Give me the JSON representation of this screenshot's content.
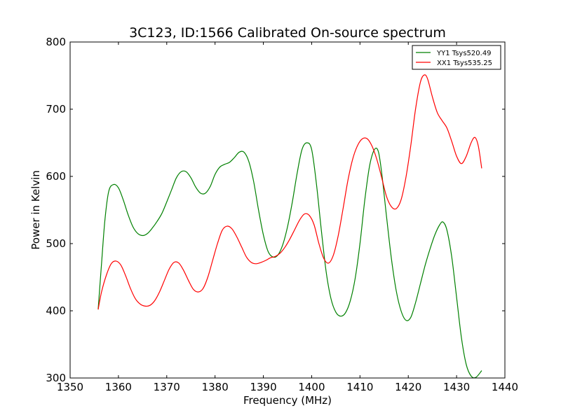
{
  "chart_data": {
    "type": "line",
    "title": "3C123, ID:1566 Calibrated On-source spectrum",
    "xlabel": "Frequency (MHz)",
    "ylabel": "Power in Kelvin",
    "xlim": [
      1350,
      1440
    ],
    "ylim": [
      300,
      800
    ],
    "xticks": [
      1350,
      1360,
      1370,
      1380,
      1390,
      1400,
      1410,
      1420,
      1430,
      1440
    ],
    "yticks": [
      300,
      400,
      500,
      600,
      700,
      800
    ],
    "grid": false,
    "legend_position": "top-right",
    "colors": {
      "YY1": "#008000",
      "XX1": "#ff0000"
    },
    "series": [
      {
        "name": "YY1 Tsys520.49",
        "color": "#008000",
        "points": [
          [
            1355.8,
            402
          ],
          [
            1356.5,
            470
          ],
          [
            1357.2,
            535
          ],
          [
            1358.0,
            578
          ],
          [
            1359.0,
            588
          ],
          [
            1360.0,
            583
          ],
          [
            1361.0,
            565
          ],
          [
            1362.0,
            543
          ],
          [
            1363.0,
            525
          ],
          [
            1364.0,
            515
          ],
          [
            1365.0,
            512
          ],
          [
            1366.0,
            515
          ],
          [
            1367.0,
            523
          ],
          [
            1368.0,
            533
          ],
          [
            1369.0,
            545
          ],
          [
            1370.0,
            562
          ],
          [
            1371.0,
            580
          ],
          [
            1372.0,
            598
          ],
          [
            1373.0,
            607
          ],
          [
            1374.0,
            607
          ],
          [
            1375.0,
            598
          ],
          [
            1376.0,
            584
          ],
          [
            1377.0,
            575
          ],
          [
            1378.0,
            575
          ],
          [
            1379.0,
            585
          ],
          [
            1380.0,
            603
          ],
          [
            1381.0,
            614
          ],
          [
            1382.0,
            618
          ],
          [
            1383.0,
            621
          ],
          [
            1384.0,
            628
          ],
          [
            1385.0,
            636
          ],
          [
            1386.0,
            636
          ],
          [
            1387.0,
            622
          ],
          [
            1388.0,
            592
          ],
          [
            1389.0,
            550
          ],
          [
            1390.0,
            513
          ],
          [
            1391.0,
            488
          ],
          [
            1392.0,
            480
          ],
          [
            1393.0,
            483
          ],
          [
            1394.0,
            498
          ],
          [
            1395.0,
            525
          ],
          [
            1396.0,
            562
          ],
          [
            1397.0,
            605
          ],
          [
            1398.0,
            640
          ],
          [
            1399.0,
            650
          ],
          [
            1400.0,
            640
          ],
          [
            1401.0,
            588
          ],
          [
            1402.0,
            520
          ],
          [
            1403.0,
            458
          ],
          [
            1404.0,
            418
          ],
          [
            1405.0,
            398
          ],
          [
            1406.0,
            392
          ],
          [
            1407.0,
            397
          ],
          [
            1408.0,
            415
          ],
          [
            1409.0,
            448
          ],
          [
            1410.0,
            500
          ],
          [
            1411.0,
            565
          ],
          [
            1412.0,
            616
          ],
          [
            1413.0,
            640
          ],
          [
            1413.8,
            637
          ],
          [
            1414.5,
            605
          ],
          [
            1415.5,
            540
          ],
          [
            1416.5,
            478
          ],
          [
            1417.5,
            430
          ],
          [
            1418.5,
            400
          ],
          [
            1419.5,
            386
          ],
          [
            1420.5,
            390
          ],
          [
            1421.5,
            412
          ],
          [
            1422.5,
            440
          ],
          [
            1423.5,
            468
          ],
          [
            1424.5,
            492
          ],
          [
            1425.5,
            513
          ],
          [
            1426.5,
            528
          ],
          [
            1427.2,
            532
          ],
          [
            1428.0,
            520
          ],
          [
            1429.0,
            480
          ],
          [
            1430.0,
            420
          ],
          [
            1431.0,
            360
          ],
          [
            1432.0,
            320
          ],
          [
            1433.0,
            303
          ],
          [
            1434.0,
            301
          ],
          [
            1435.2,
            311
          ]
        ]
      },
      {
        "name": "XX1 Tsys535.25",
        "color": "#ff0000",
        "points": [
          [
            1355.8,
            402
          ],
          [
            1356.5,
            428
          ],
          [
            1357.5,
            453
          ],
          [
            1358.5,
            470
          ],
          [
            1359.5,
            474
          ],
          [
            1360.5,
            468
          ],
          [
            1361.5,
            452
          ],
          [
            1362.5,
            433
          ],
          [
            1363.5,
            418
          ],
          [
            1364.5,
            410
          ],
          [
            1365.5,
            407
          ],
          [
            1366.5,
            408
          ],
          [
            1367.5,
            415
          ],
          [
            1368.5,
            428
          ],
          [
            1369.5,
            445
          ],
          [
            1370.5,
            462
          ],
          [
            1371.5,
            472
          ],
          [
            1372.5,
            471
          ],
          [
            1373.5,
            460
          ],
          [
            1374.5,
            445
          ],
          [
            1375.5,
            432
          ],
          [
            1376.5,
            428
          ],
          [
            1377.5,
            433
          ],
          [
            1378.5,
            450
          ],
          [
            1379.5,
            475
          ],
          [
            1380.5,
            500
          ],
          [
            1381.5,
            520
          ],
          [
            1382.5,
            526
          ],
          [
            1383.5,
            522
          ],
          [
            1384.5,
            510
          ],
          [
            1385.5,
            495
          ],
          [
            1386.5,
            480
          ],
          [
            1387.5,
            472
          ],
          [
            1388.5,
            470
          ],
          [
            1389.5,
            472
          ],
          [
            1390.5,
            475
          ],
          [
            1391.5,
            479
          ],
          [
            1392.5,
            481
          ],
          [
            1393.5,
            486
          ],
          [
            1394.5,
            495
          ],
          [
            1395.5,
            507
          ],
          [
            1396.5,
            521
          ],
          [
            1397.5,
            535
          ],
          [
            1398.5,
            544
          ],
          [
            1399.5,
            542
          ],
          [
            1400.5,
            528
          ],
          [
            1401.5,
            500
          ],
          [
            1402.5,
            478
          ],
          [
            1403.5,
            471
          ],
          [
            1404.5,
            483
          ],
          [
            1405.5,
            512
          ],
          [
            1406.5,
            552
          ],
          [
            1407.5,
            594
          ],
          [
            1408.5,
            626
          ],
          [
            1409.5,
            646
          ],
          [
            1410.5,
            656
          ],
          [
            1411.5,
            656
          ],
          [
            1412.5,
            645
          ],
          [
            1413.5,
            625
          ],
          [
            1414.5,
            598
          ],
          [
            1415.5,
            570
          ],
          [
            1416.5,
            555
          ],
          [
            1417.5,
            552
          ],
          [
            1418.5,
            565
          ],
          [
            1419.5,
            598
          ],
          [
            1420.5,
            645
          ],
          [
            1421.5,
            700
          ],
          [
            1422.5,
            740
          ],
          [
            1423.3,
            751
          ],
          [
            1424.0,
            745
          ],
          [
            1425.0,
            718
          ],
          [
            1426.0,
            695
          ],
          [
            1427.0,
            683
          ],
          [
            1428.0,
            672
          ],
          [
            1429.0,
            652
          ],
          [
            1430.0,
            630
          ],
          [
            1431.0,
            619
          ],
          [
            1432.0,
            630
          ],
          [
            1433.0,
            650
          ],
          [
            1433.8,
            658
          ],
          [
            1434.5,
            645
          ],
          [
            1435.2,
            612
          ]
        ]
      }
    ]
  }
}
